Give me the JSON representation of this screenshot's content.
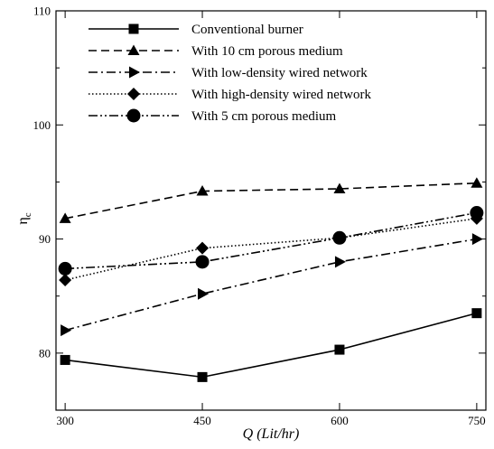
{
  "chart_data": {
    "type": "line",
    "x": [
      300,
      450,
      600,
      750
    ],
    "xlabel": "Q (Lit/hr)",
    "ylabel_main": "η",
    "ylabel_sub": "c",
    "xlim": [
      290,
      760
    ],
    "ylim": [
      75,
      110
    ],
    "xticks": [
      300,
      450,
      600,
      750
    ],
    "yticks": [
      80,
      90,
      100,
      110
    ],
    "grid": false,
    "legend_position": "top",
    "series": [
      {
        "name": "Conventional burner",
        "values": [
          79.4,
          77.9,
          80.3,
          83.5
        ],
        "marker": "square",
        "dash": "solid"
      },
      {
        "name": "With 10 cm porous medium",
        "values": [
          91.8,
          94.2,
          94.4,
          94.9
        ],
        "marker": "triangle-up",
        "dash": "dashed"
      },
      {
        "name": "With low-density wired network",
        "values": [
          82.0,
          85.2,
          88.0,
          90.0
        ],
        "marker": "triangle-right",
        "dash": "dashdot"
      },
      {
        "name": "With high-density wired network",
        "values": [
          86.4,
          89.2,
          90.1,
          91.8
        ],
        "marker": "diamond",
        "dash": "dotted"
      },
      {
        "name": "With 5 cm porous medium",
        "values": [
          87.4,
          88.0,
          90.1,
          92.3
        ],
        "marker": "circle",
        "dash": "dashdotdot"
      }
    ]
  }
}
